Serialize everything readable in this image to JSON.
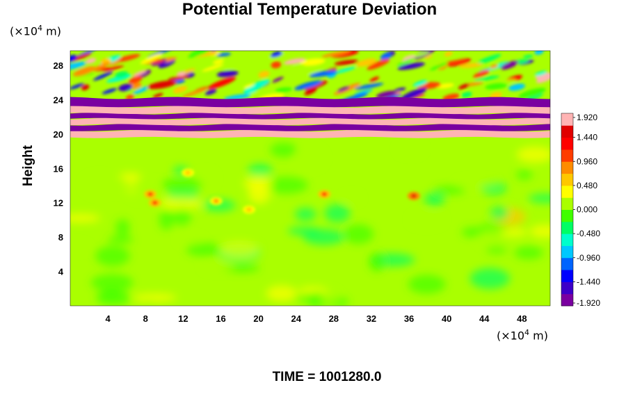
{
  "title": "Potential Temperature Deviation",
  "ylabel": "Height",
  "y_unit": {
    "prefix": "(×10",
    "exp": "4",
    "suffix": " m)"
  },
  "x_unit": {
    "prefix": "(×10",
    "exp": "4",
    "suffix": " m)"
  },
  "time_label": "TIME = 1001280.0",
  "colors": {
    "scale": [
      "#7a00a0",
      "#3c00c8",
      "#0000ff",
      "#0064ff",
      "#00c8ff",
      "#00ffcc",
      "#00ff64",
      "#40ff00",
      "#aaff00",
      "#ffff00",
      "#ffc800",
      "#ff8c00",
      "#ff3c00",
      "#ff0000",
      "#e00000",
      "#ffb4b4"
    ]
  },
  "chart_data": {
    "type": "heatmap",
    "title": "Potential Temperature Deviation",
    "ylabel": "Height",
    "x_ticks": [
      "4",
      "8",
      "12",
      "16",
      "20",
      "24",
      "28",
      "32",
      "36",
      "40",
      "44",
      "48"
    ],
    "y_ticks": [
      "4",
      "8",
      "12",
      "16",
      "20",
      "24",
      "28"
    ],
    "xlim": [
      0,
      51
    ],
    "ylim": [
      0,
      29.7
    ],
    "colorbar": {
      "ticks": [
        "1.920",
        "1.440",
        "0.960",
        "0.480",
        "0.000",
        "-0.480",
        "-0.960",
        "-1.440",
        "-1.920"
      ],
      "values": [
        1.92,
        1.44,
        0.96,
        0.48,
        0.0,
        -0.48,
        -0.96,
        -1.44,
        -1.92
      ],
      "range": [
        -1.92,
        1.92
      ]
    },
    "bands": [
      {
        "y_from": 19.6,
        "y_to": 20.4,
        "value": 1.9
      },
      {
        "y_from": 20.4,
        "y_to": 21.1,
        "value": -1.9
      },
      {
        "y_from": 21.1,
        "y_to": 21.8,
        "value": 1.9
      },
      {
        "y_from": 21.8,
        "y_to": 22.4,
        "value": -1.9
      },
      {
        "y_from": 22.4,
        "y_to": 23.2,
        "value": 1.9
      },
      {
        "y_from": 23.2,
        "y_to": 24.2,
        "value": -1.9
      }
    ],
    "hotspots": [
      {
        "x": 8.5,
        "y": 13.0,
        "value": 1.4
      },
      {
        "x": 9.0,
        "y": 12.0,
        "value": 1.2
      },
      {
        "x": 15.5,
        "y": 12.2,
        "value": 0.8
      },
      {
        "x": 27.0,
        "y": 13.0,
        "value": 1.2
      },
      {
        "x": 36.5,
        "y": 12.8,
        "value": 1.6
      },
      {
        "x": 12.5,
        "y": 15.5,
        "value": 0.6
      },
      {
        "x": 19.0,
        "y": 11.2,
        "value": 0.5
      }
    ]
  }
}
